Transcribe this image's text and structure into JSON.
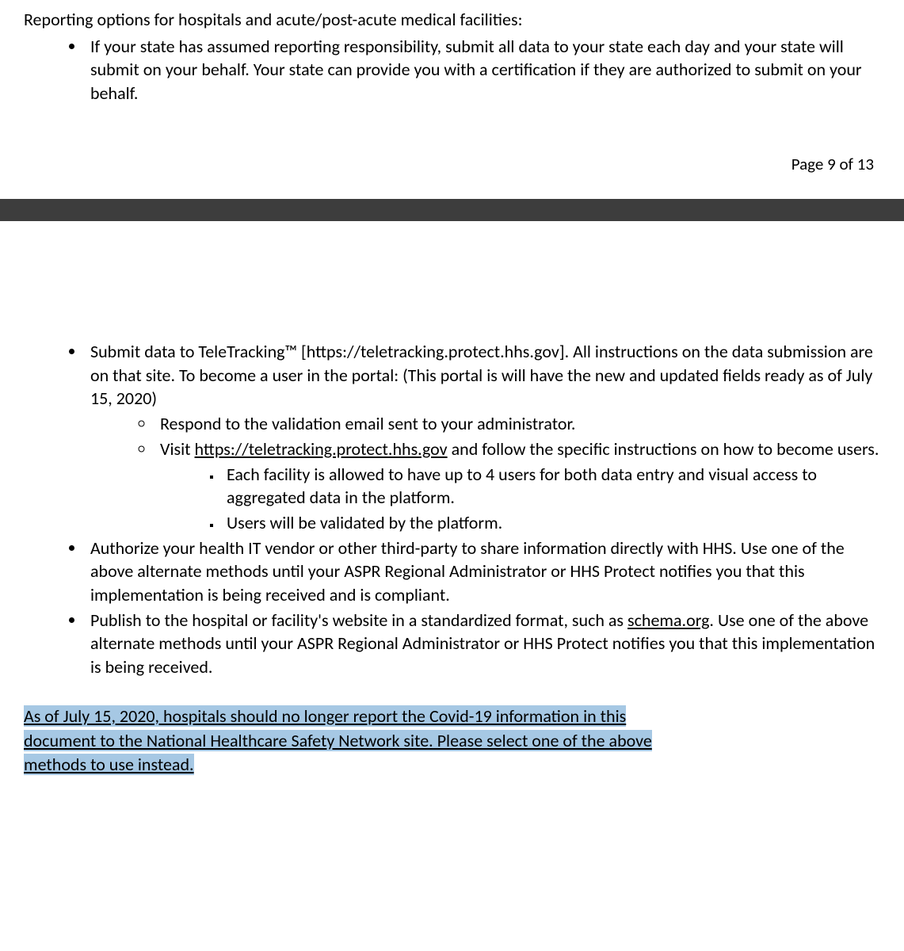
{
  "page1": {
    "intro": "Reporting options for hospitals and acute/post-acute medical facilities:",
    "bullet1": "If your state has assumed reporting responsibility, submit all data to your state each day and your state will submit on your behalf. Your state can provide you with a certification if they are authorized to submit on your behalf.",
    "pagenum": "Page 9 of 13"
  },
  "page2": {
    "b1_pre": "Submit data to TeleTracking™ [https://teletracking.protect.hhs.gov]. All instructions on the data submission are on that site. To become a user in the portal: (This portal is will have the new and updated fields ready as of July 15, 2020)",
    "b1_sub1": "Respond to the validation email sent to your administrator.",
    "b1_sub2_pre": "Visit ",
    "b1_sub2_link": "https://teletracking.protect.hhs.gov",
    "b1_sub2_post": " and follow the specific instructions on how to become users.",
    "b1_sub2_sq1": "Each facility is allowed to have up to 4 users for both data entry and visual access to aggregated data in the platform.",
    "b1_sub2_sq2": "Users will be validated by the platform.",
    "b2": "Authorize your health IT vendor or other third-party to share information directly with HHS. Use one of the above alternate methods until your ASPR Regional Administrator or HHS Protect notifies you that this implementation is being received and is compliant.",
    "b3_pre": "Publish to the hospital or facility's website in a standardized format, such as ",
    "b3_link": "schema.org",
    "b3_post": ". Use one of the above alternate methods until your ASPR Regional Administrator or HHS Protect notifies you that this implementation is being received.",
    "h_l1": "As of July 15, 2020, hospitals should no longer report the Covid-19 information in this ",
    "h_l2": "document to the National Healthcare Safety Network site. Please select one of the above ",
    "h_l3": "methods to use instead. "
  },
  "colors": {
    "highlight_bg": "#a6c8e4",
    "text": "#000000",
    "gap_bg": "#3d3d3d"
  }
}
